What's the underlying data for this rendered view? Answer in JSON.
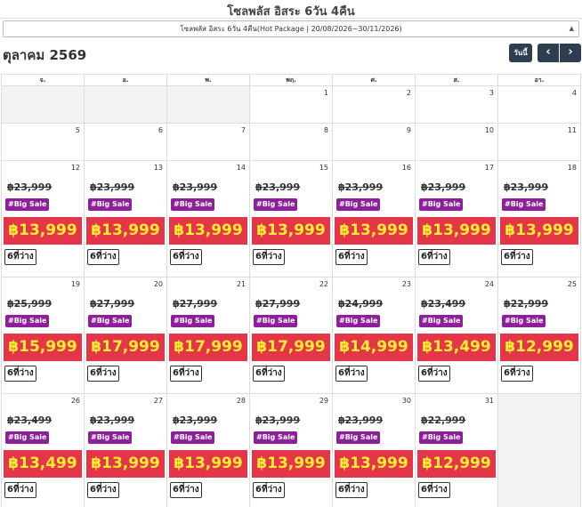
{
  "header": {
    "title": "โซลพลัส อิสระ 6วัน 4คืน",
    "package_option": "โซลพลัส อิสระ 6วัน 4คืน(Hot Package | 20/08/2026~30/11/2026)",
    "month_label": "ตุลาคม 2569"
  },
  "toolbar": {
    "today_label": "วันนี้",
    "prev_label": "‹",
    "next_label": "›"
  },
  "weekdays": [
    "จ.",
    "อ.",
    "พ.",
    "พฤ.",
    "ศ.",
    "ส.",
    "อา."
  ],
  "weeks": [
    [
      {
        "day": ""
      },
      {
        "day": ""
      },
      {
        "day": ""
      },
      {
        "day": "1"
      },
      {
        "day": "2"
      },
      {
        "day": "3"
      },
      {
        "day": "4"
      }
    ],
    [
      {
        "day": "5"
      },
      {
        "day": "6"
      },
      {
        "day": "7"
      },
      {
        "day": "8"
      },
      {
        "day": "9"
      },
      {
        "day": "10"
      },
      {
        "day": "11"
      }
    ],
    [
      {
        "day": "12",
        "old": "฿23,999",
        "badge": "#Big Sale",
        "price": "฿13,999",
        "seats": "6ที่ว่าง"
      },
      {
        "day": "13",
        "old": "฿23,999",
        "badge": "#Big Sale",
        "price": "฿13,999",
        "seats": "6ที่ว่าง"
      },
      {
        "day": "14",
        "old": "฿23,999",
        "badge": "#Big Sale",
        "price": "฿13,999",
        "seats": "6ที่ว่าง"
      },
      {
        "day": "15",
        "old": "฿23,999",
        "badge": "#Big Sale",
        "price": "฿13,999",
        "seats": "6ที่ว่าง"
      },
      {
        "day": "16",
        "old": "฿23,999",
        "badge": "#Big Sale",
        "price": "฿13,999",
        "seats": "6ที่ว่าง"
      },
      {
        "day": "17",
        "old": "฿23,999",
        "badge": "#Big Sale",
        "price": "฿13,999",
        "seats": "6ที่ว่าง"
      },
      {
        "day": "18",
        "old": "฿23,999",
        "badge": "#Big Sale",
        "price": "฿13,999",
        "seats": "6ที่ว่าง"
      }
    ],
    [
      {
        "day": "19",
        "old": "฿25,999",
        "badge": "#Big Sale",
        "price": "฿15,999",
        "seats": "6ที่ว่าง"
      },
      {
        "day": "20",
        "old": "฿27,999",
        "badge": "#Big Sale",
        "price": "฿17,999",
        "seats": "6ที่ว่าง"
      },
      {
        "day": "21",
        "old": "฿27,999",
        "badge": "#Big Sale",
        "price": "฿17,999",
        "seats": "6ที่ว่าง"
      },
      {
        "day": "22",
        "old": "฿27,999",
        "badge": "#Big Sale",
        "price": "฿17,999",
        "seats": "6ที่ว่าง"
      },
      {
        "day": "23",
        "old": "฿24,999",
        "badge": "#Big Sale",
        "price": "฿14,999",
        "seats": "6ที่ว่าง"
      },
      {
        "day": "24",
        "old": "฿23,499",
        "badge": "#Big Sale",
        "price": "฿13,499",
        "seats": "6ที่ว่าง"
      },
      {
        "day": "25",
        "old": "฿22,999",
        "badge": "#Big Sale",
        "price": "฿12,999",
        "seats": "6ที่ว่าง"
      }
    ],
    [
      {
        "day": "26",
        "old": "฿23,499",
        "badge": "#Big Sale",
        "price": "฿13,499",
        "seats": "6ที่ว่าง"
      },
      {
        "day": "27",
        "old": "฿23,999",
        "badge": "#Big Sale",
        "price": "฿13,999",
        "seats": "6ที่ว่าง"
      },
      {
        "day": "28",
        "old": "฿23,999",
        "badge": "#Big Sale",
        "price": "฿13,999",
        "seats": "6ที่ว่าง"
      },
      {
        "day": "29",
        "old": "฿23,999",
        "badge": "#Big Sale",
        "price": "฿13,999",
        "seats": "6ที่ว่าง"
      },
      {
        "day": "30",
        "old": "฿23,999",
        "badge": "#Big Sale",
        "price": "฿13,999",
        "seats": "6ที่ว่าง"
      },
      {
        "day": "31",
        "old": "฿22,999",
        "badge": "#Big Sale",
        "price": "฿12,999",
        "seats": "6ที่ว่าง"
      },
      {
        "day": ""
      }
    ]
  ],
  "colors": {
    "nav_button": "#2c3e50",
    "badge": "#8e1f9a",
    "price_bg": "#e53548",
    "price_text": "#ffee33",
    "empty_cell": "#f2f2f2"
  }
}
